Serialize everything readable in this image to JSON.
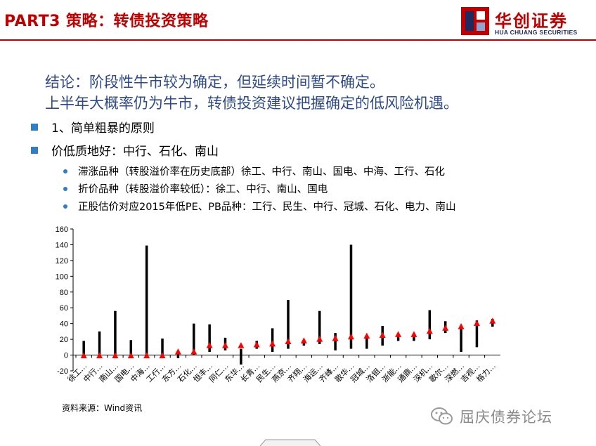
{
  "header": {
    "title": "PART3 策略：转债投资策略",
    "logo_cn": "华创证券",
    "logo_en": "HUA CHUANG SECURITIES",
    "accent_color": "#c00000"
  },
  "conclusion": {
    "line1": "结论：阶段性牛市较为确定，但延续时间暂不确定。",
    "line2": "上半年大概率仍为牛市，转债投资建议把握确定的低风险机遇。"
  },
  "bullets": [
    {
      "text": "1、简单粗暴的原则"
    },
    {
      "text": "价低质地好：中行、石化、南山"
    }
  ],
  "sub_bullets": [
    {
      "text": "滞涨品种（转股溢价率在历史底部）徐工、中行、南山、国电、中海、工行、石化"
    },
    {
      "text": "折价品种（转股溢价率较低）：徐工、中行、南山、国电"
    },
    {
      "text": "正股估价对应2015年低PE、PB品种：工行、民生、中行、冠城、石化、电力、南山"
    }
  ],
  "chart_data": {
    "type": "bar",
    "title": "",
    "xlabel": "",
    "ylabel": "",
    "ylim": [
      -20,
      160
    ],
    "yticks": [
      -20,
      0,
      20,
      40,
      60,
      80,
      100,
      120,
      140,
      160
    ],
    "grid": false,
    "legend": "none",
    "categories": [
      "徐工…",
      "中行…",
      "南山…",
      "国电…",
      "中海…",
      "工行…",
      "东方…",
      "石化…",
      "恒丰…",
      "同仁…",
      "东华…",
      "长青…",
      "民生…",
      "燕京…",
      "齐翔…",
      "海运…",
      "齐峰…",
      "歌华…",
      "冠城…",
      "洛钼…",
      "浙能…",
      "通鼎…",
      "深机…",
      "歌尔…",
      "深燃…",
      "吉视…",
      "格力…"
    ],
    "series": [
      {
        "mark": "range-bar",
        "color": "#000000",
        "low": [
          0,
          0,
          0,
          0,
          0,
          0,
          -4,
          0,
          4,
          6,
          -12,
          8,
          4,
          8,
          12,
          14,
          6,
          8,
          8,
          12,
          18,
          18,
          20,
          28,
          4,
          10,
          36
        ],
        "high": [
          18,
          30,
          56,
          19,
          139,
          21,
          3,
          40,
          39,
          22,
          8,
          18,
          34,
          70,
          19,
          56,
          28,
          140,
          24,
          37,
          26,
          26,
          57,
          43,
          34,
          44,
          46
        ]
      },
      {
        "mark": "triangle",
        "color": "#ff0000",
        "values": [
          -1,
          -1,
          -1,
          -1,
          -1,
          -1,
          4,
          4,
          12,
          12,
          12,
          13,
          14,
          17,
          18,
          20,
          21,
          23,
          24,
          25,
          26,
          26,
          30,
          34,
          36,
          40,
          43
        ]
      }
    ]
  },
  "source": "资料来源：Wind资讯",
  "watermark": "屈庆债券论坛"
}
